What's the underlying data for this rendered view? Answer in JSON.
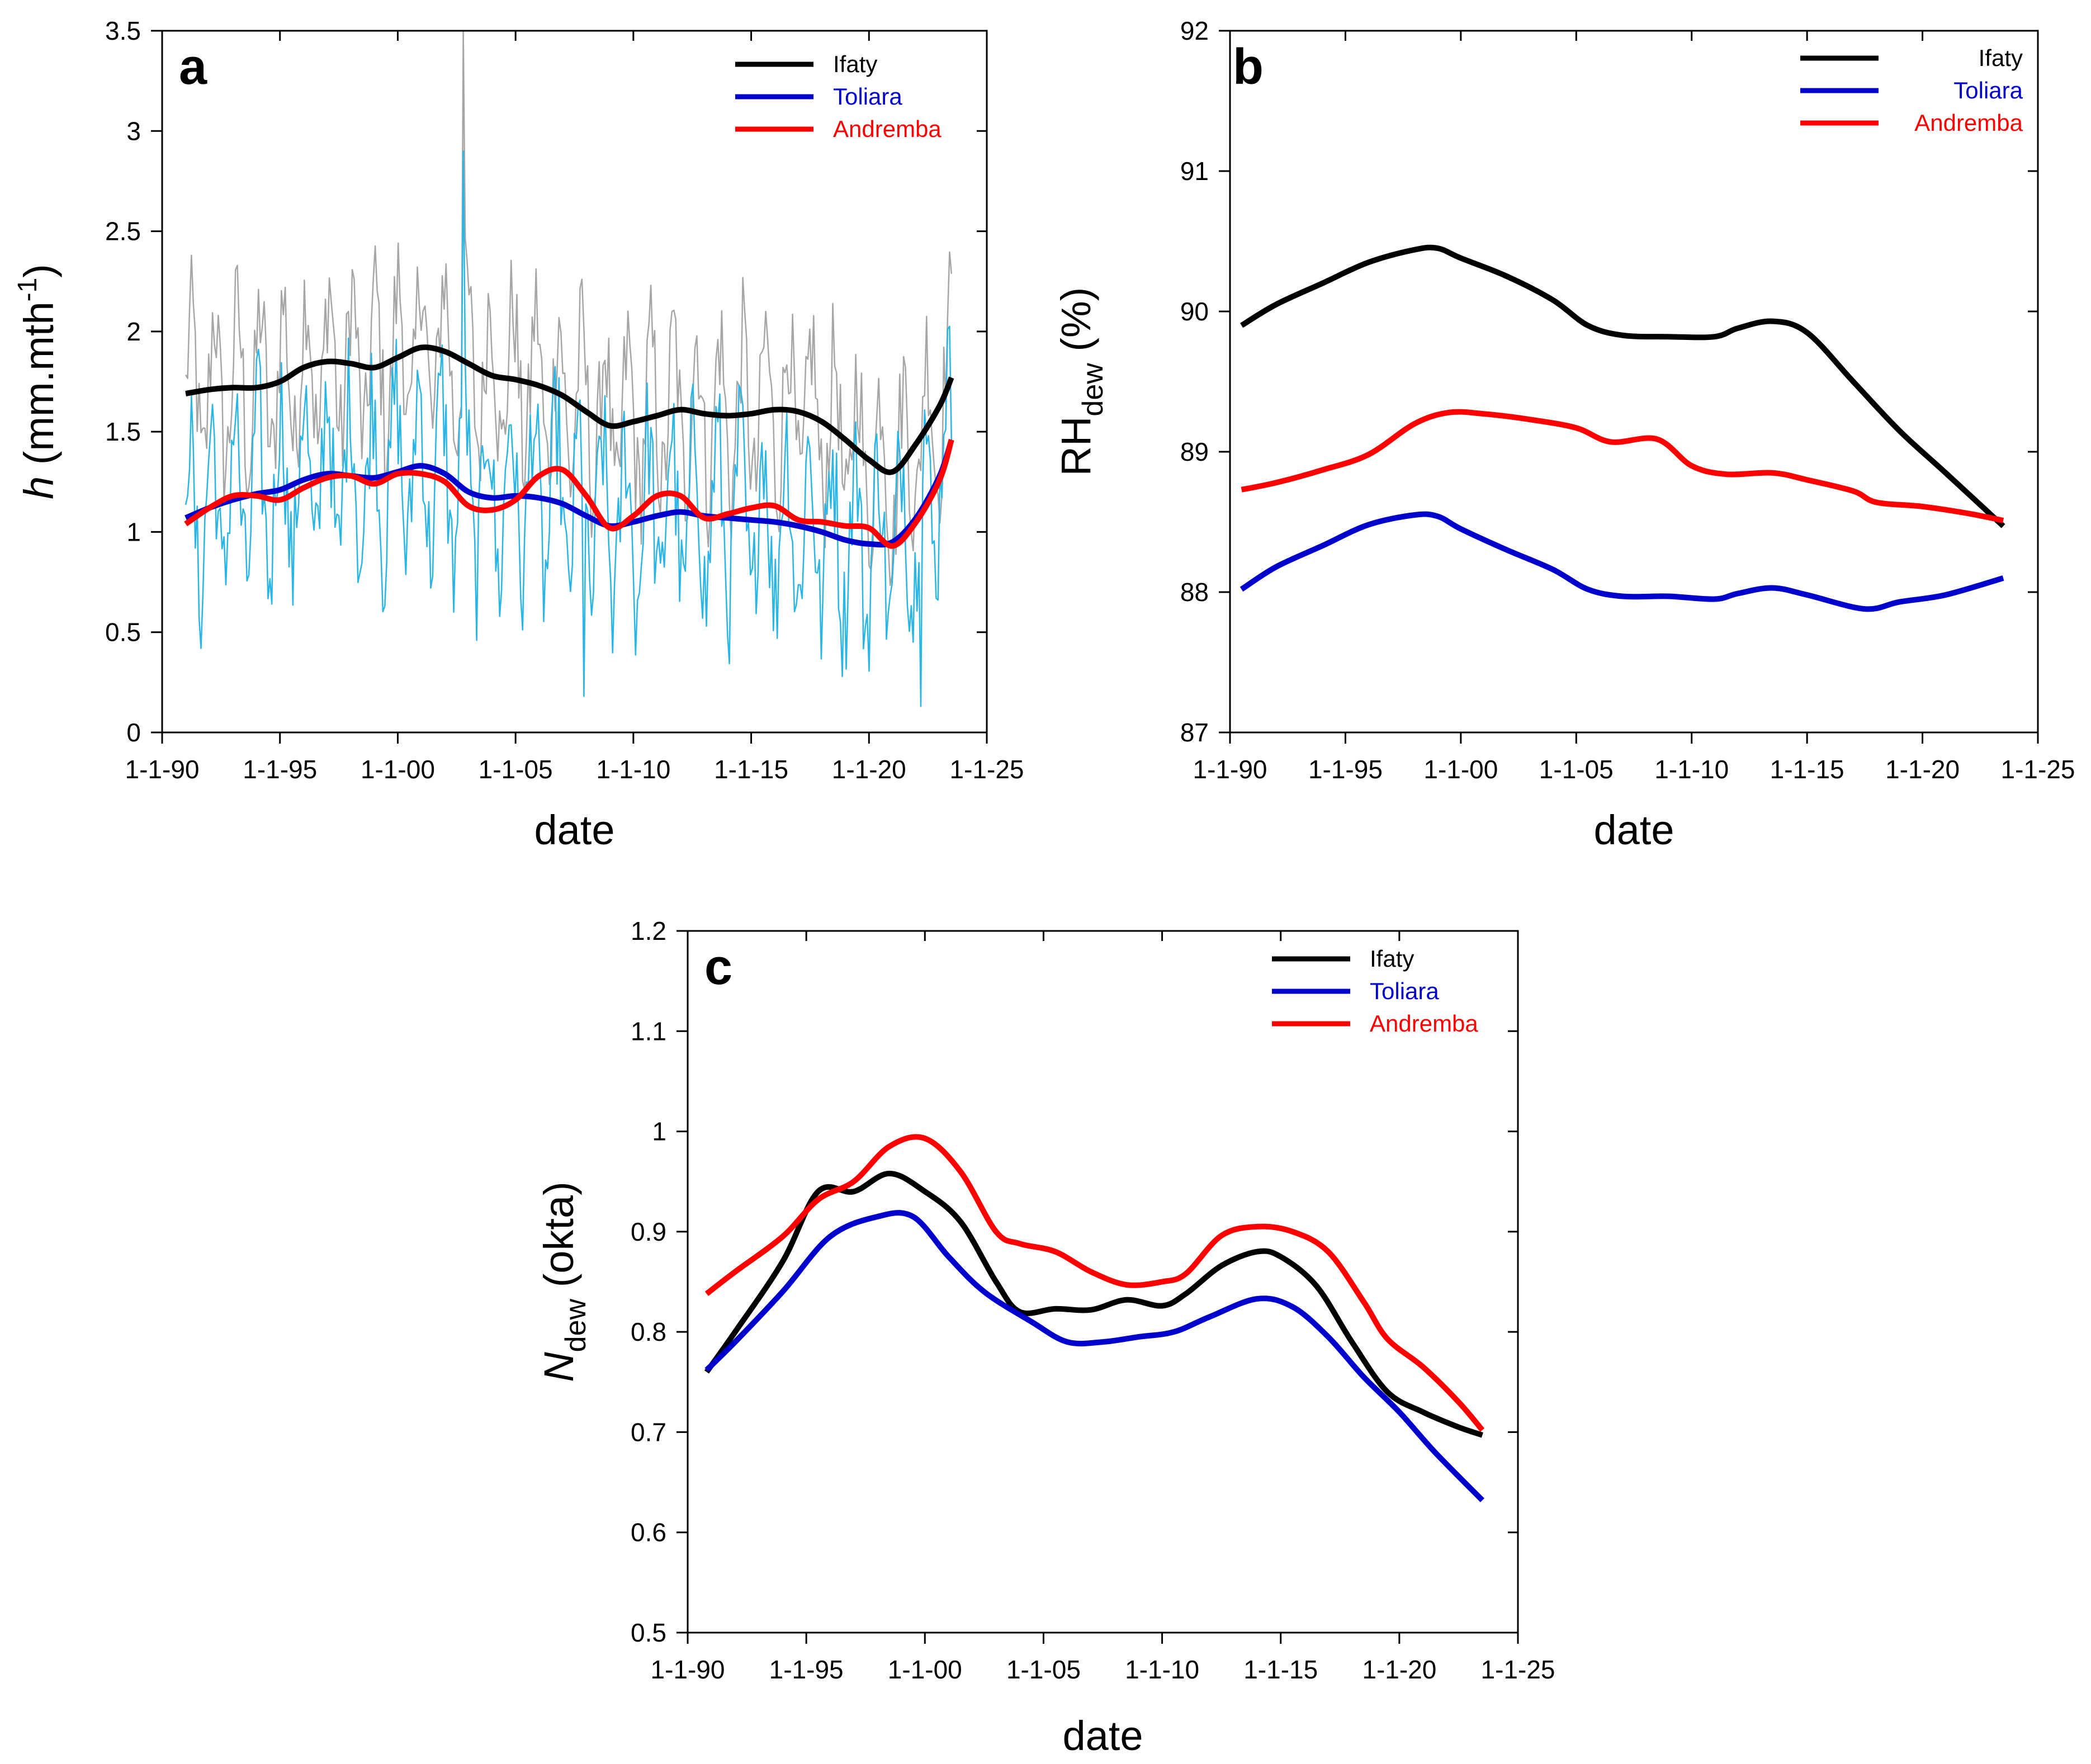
{
  "chart_data": [
    {
      "panel": "a",
      "type": "line",
      "xlabel": "date",
      "ylabel": "h (mm.mth-1)",
      "ylabel_parts": {
        "var": "h",
        "unit_main": "(mm.mth",
        "unit_sup": "-1",
        "unit_end": ")"
      },
      "xlim": [
        1990,
        2025
      ],
      "ylim": [
        0,
        3.5
      ],
      "x_ticks": [
        1990,
        1995,
        2000,
        2005,
        2010,
        2015,
        2020,
        2025
      ],
      "x_tick_labels": [
        "1-1-90",
        "1-1-95",
        "1-1-00",
        "1-1-05",
        "1-1-10",
        "1-1-15",
        "1-1-20",
        "1-1-25"
      ],
      "y_ticks": [
        0,
        0.5,
        1,
        1.5,
        2,
        2.5,
        3,
        3.5
      ],
      "y_tick_labels": [
        "0",
        "0.5",
        "1",
        "1.5",
        "2",
        "2.5",
        "3",
        "3.5"
      ],
      "legend": {
        "position": "top-right"
      },
      "series": [
        {
          "name": "Ifaty",
          "color": "#000000",
          "x": [
            1991,
            1992,
            1993,
            1994,
            1995,
            1996,
            1997,
            1998,
            1999,
            2000,
            2001,
            2002,
            2003,
            2004,
            2005,
            2006,
            2007,
            2008,
            2009,
            2010,
            2011,
            2012,
            2013,
            2014,
            2015,
            2016,
            2017,
            2018,
            2019,
            2020,
            2021,
            2022,
            2023,
            2023.5
          ],
          "values": [
            1.69,
            1.71,
            1.72,
            1.72,
            1.75,
            1.82,
            1.85,
            1.84,
            1.82,
            1.87,
            1.92,
            1.9,
            1.84,
            1.78,
            1.76,
            1.73,
            1.68,
            1.6,
            1.53,
            1.55,
            1.58,
            1.61,
            1.59,
            1.58,
            1.59,
            1.61,
            1.6,
            1.55,
            1.46,
            1.36,
            1.3,
            1.44,
            1.63,
            1.77
          ]
        },
        {
          "name": "Toliara",
          "color": "#0000cc",
          "x": [
            1991,
            1992,
            1993,
            1994,
            1995,
            1996,
            1997,
            1998,
            1999,
            2000,
            2001,
            2002,
            2003,
            2004,
            2005,
            2006,
            2007,
            2008,
            2009,
            2010,
            2011,
            2012,
            2013,
            2014,
            2015,
            2016,
            2017,
            2018,
            2019,
            2020,
            2021,
            2022,
            2023,
            2023.5
          ],
          "values": [
            1.07,
            1.12,
            1.16,
            1.19,
            1.21,
            1.26,
            1.29,
            1.28,
            1.27,
            1.3,
            1.33,
            1.29,
            1.2,
            1.17,
            1.18,
            1.17,
            1.14,
            1.08,
            1.03,
            1.05,
            1.08,
            1.1,
            1.08,
            1.07,
            1.06,
            1.05,
            1.03,
            1.0,
            0.96,
            0.94,
            0.95,
            1.07,
            1.28,
            1.46
          ]
        },
        {
          "name": "Andremba",
          "color": "#ff0000",
          "x": [
            1991,
            1992,
            1993,
            1994,
            1995,
            1996,
            1997,
            1998,
            1999,
            2000,
            2001,
            2002,
            2003,
            2004,
            2005,
            2006,
            2007,
            2008,
            2009,
            2010,
            2011,
            2012,
            2013,
            2014,
            2015,
            2016,
            2017,
            2018,
            2019,
            2020,
            2021,
            2022,
            2023,
            2023.5
          ],
          "values": [
            1.04,
            1.12,
            1.18,
            1.18,
            1.16,
            1.22,
            1.27,
            1.28,
            1.24,
            1.29,
            1.29,
            1.25,
            1.13,
            1.11,
            1.16,
            1.28,
            1.31,
            1.18,
            1.02,
            1.08,
            1.18,
            1.18,
            1.07,
            1.09,
            1.12,
            1.13,
            1.06,
            1.05,
            1.03,
            1.02,
            0.93,
            1.05,
            1.26,
            1.46
          ]
        }
      ],
      "background_series": [
        {
          "name": "Ifaty monthly",
          "color": "#a6a6a6"
        },
        {
          "name": "Toliara monthly",
          "color": "#29b6e6"
        }
      ]
    },
    {
      "panel": "b",
      "type": "line",
      "xlabel": "date",
      "ylabel": "RHdew (%)",
      "ylabel_parts": {
        "main": "RH",
        "sub": "dew",
        "unit": " (%)"
      },
      "xlim": [
        1990,
        2025
      ],
      "ylim": [
        87,
        92
      ],
      "x_ticks": [
        1990,
        1995,
        2000,
        2005,
        2010,
        2015,
        2020,
        2025
      ],
      "x_tick_labels": [
        "1-1-90",
        "1-1-95",
        "1-1-00",
        "1-1-05",
        "1-1-10",
        "1-1-15",
        "1-1-20",
        "1-1-25"
      ],
      "y_ticks": [
        87,
        88,
        89,
        90,
        91,
        92
      ],
      "y_tick_labels": [
        "87",
        "88",
        "89",
        "90",
        "91",
        "92"
      ],
      "legend": {
        "position": "top-right"
      },
      "series": [
        {
          "name": "Ifaty",
          "color": "#000000",
          "x": [
            1990.5,
            1992,
            1994,
            1996,
            1998,
            1999,
            2000,
            2002,
            2004,
            2005.5,
            2007,
            2009,
            2011,
            2012,
            2013.5,
            2015,
            2017,
            2019,
            2021,
            2023.5
          ],
          "values": [
            89.9,
            90.05,
            90.2,
            90.35,
            90.44,
            90.45,
            90.38,
            90.25,
            90.08,
            89.9,
            89.83,
            89.82,
            89.82,
            89.88,
            89.93,
            89.85,
            89.5,
            89.15,
            88.85,
            88.47
          ]
        },
        {
          "name": "Toliara",
          "color": "#0000cc",
          "x": [
            1990.5,
            1992,
            1994,
            1996,
            1998,
            1999,
            2000,
            2002,
            2004,
            2005.5,
            2007,
            2009,
            2011,
            2012,
            2013.5,
            2015,
            2017.5,
            2019,
            2021,
            2023.5
          ],
          "values": [
            88.02,
            88.18,
            88.33,
            88.48,
            88.55,
            88.54,
            88.45,
            88.3,
            88.16,
            88.02,
            87.97,
            87.97,
            87.95,
            87.99,
            88.03,
            87.98,
            87.88,
            87.93,
            87.98,
            88.1
          ]
        },
        {
          "name": "Andremba",
          "color": "#ff0000",
          "x": [
            1990.5,
            1992,
            1994,
            1996,
            1998,
            1999.5,
            2001,
            2003,
            2005,
            2006.5,
            2008.5,
            2010,
            2011.5,
            2013.5,
            2015,
            2017,
            2018,
            2020,
            2022,
            2023.5
          ],
          "values": [
            88.73,
            88.78,
            88.87,
            88.98,
            89.2,
            89.28,
            89.27,
            89.23,
            89.17,
            89.07,
            89.09,
            88.9,
            88.84,
            88.85,
            88.8,
            88.72,
            88.64,
            88.61,
            88.56,
            88.51
          ]
        }
      ]
    },
    {
      "panel": "c",
      "type": "line",
      "xlabel": "date",
      "ylabel": "Ndew (okta)",
      "ylabel_parts": {
        "var": "N",
        "sub": "dew",
        "unit": " (okta)"
      },
      "xlim": [
        1990,
        2025
      ],
      "ylim": [
        0.5,
        1.2
      ],
      "x_ticks": [
        1990,
        1995,
        2000,
        2005,
        2010,
        2015,
        2020,
        2025
      ],
      "x_tick_labels": [
        "1-1-90",
        "1-1-95",
        "1-1-00",
        "1-1-05",
        "1-1-10",
        "1-1-15",
        "1-1-20",
        "1-1-25"
      ],
      "y_ticks": [
        0.5,
        0.6,
        0.7,
        0.8,
        0.9,
        1.0,
        1.1,
        1.2
      ],
      "y_tick_labels": [
        "0.5",
        "0.6",
        "0.7",
        "0.8",
        "0.9",
        "1",
        "1.1",
        "1.2"
      ],
      "legend": {
        "position": "top-right"
      },
      "series": [
        {
          "name": "Ifaty",
          "color": "#000000",
          "x": [
            1990.8,
            1992,
            1994,
            1995.5,
            1997,
            1998.5,
            2000,
            2001.5,
            2003,
            2004,
            2005.5,
            2007,
            2008.5,
            2010,
            2011,
            2012.5,
            2014,
            2015,
            2016.5,
            2018,
            2019.5,
            2021,
            2022.5,
            2023.5
          ],
          "values": [
            0.76,
            0.8,
            0.87,
            0.94,
            0.94,
            0.958,
            0.94,
            0.91,
            0.85,
            0.82,
            0.823,
            0.822,
            0.832,
            0.826,
            0.838,
            0.866,
            0.88,
            0.875,
            0.846,
            0.79,
            0.74,
            0.72,
            0.705,
            0.697
          ]
        },
        {
          "name": "Toliara",
          "color": "#0000cc",
          "x": [
            1990.8,
            1992,
            1994,
            1996,
            1998,
            1999.5,
            2001,
            2002.5,
            2004.5,
            2006,
            2007.5,
            2009,
            2010.5,
            2012,
            2014,
            2015.5,
            2017,
            2018.5,
            2020,
            2021.5,
            2023.5
          ],
          "values": [
            0.762,
            0.79,
            0.84,
            0.895,
            0.915,
            0.915,
            0.875,
            0.84,
            0.81,
            0.79,
            0.79,
            0.795,
            0.8,
            0.815,
            0.833,
            0.825,
            0.795,
            0.755,
            0.72,
            0.68,
            0.632
          ]
        },
        {
          "name": "Andremba",
          "color": "#ff0000",
          "x": [
            1990.8,
            1992,
            1994,
            1995.5,
            1997,
            1998.5,
            2000,
            2001.5,
            2003,
            2004,
            2005.5,
            2007,
            2008.5,
            2010,
            2011,
            2012.5,
            2014,
            2015.5,
            2017,
            2018.5,
            2019.5,
            2021,
            2022.5,
            2023.5
          ],
          "values": [
            0.838,
            0.86,
            0.895,
            0.932,
            0.95,
            0.985,
            0.993,
            0.96,
            0.9,
            0.888,
            0.88,
            0.86,
            0.847,
            0.85,
            0.858,
            0.896,
            0.905,
            0.9,
            0.88,
            0.83,
            0.793,
            0.765,
            0.73,
            0.702
          ]
        }
      ]
    }
  ]
}
